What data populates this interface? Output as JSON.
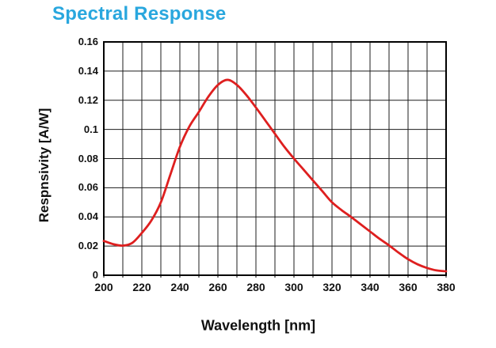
{
  "header": {
    "title": "Spectral Response",
    "title_color": "#29a7de"
  },
  "chart_data": {
    "type": "line",
    "title": "Spectral Response",
    "xlabel": "Wavelength [nm]",
    "ylabel": "Respnsivity [A/W]",
    "xlim": [
      200,
      380
    ],
    "ylim": [
      0,
      0.16
    ],
    "x_grid_step": 10,
    "y_grid_step": 0.02,
    "x_tick_labels": [
      "200",
      "220",
      "240",
      "260",
      "280",
      "300",
      "320",
      "340",
      "360",
      "380"
    ],
    "y_tick_labels": [
      "0.16",
      "0.14",
      "0.12",
      "0.1",
      "0.08",
      "0.06",
      "0.04",
      "0.02",
      "0"
    ],
    "grid": true,
    "legend": false,
    "line_color": "#de1f1f",
    "grid_color": "#1c1c1c",
    "axis_color": "#000000",
    "series": [
      {
        "name": "spectral response",
        "points": [
          [
            200,
            0.0235
          ],
          [
            205,
            0.0213
          ],
          [
            210,
            0.0203
          ],
          [
            215,
            0.0222
          ],
          [
            220,
            0.029
          ],
          [
            225,
            0.0375
          ],
          [
            230,
            0.05
          ],
          [
            235,
            0.069
          ],
          [
            240,
            0.088
          ],
          [
            245,
            0.102
          ],
          [
            250,
            0.112
          ],
          [
            255,
            0.1225
          ],
          [
            260,
            0.1305
          ],
          [
            265,
            0.134
          ],
          [
            270,
            0.1305
          ],
          [
            275,
            0.1235
          ],
          [
            280,
            0.115
          ],
          [
            285,
            0.106
          ],
          [
            290,
            0.097
          ],
          [
            295,
            0.088
          ],
          [
            300,
            0.08
          ],
          [
            305,
            0.0725
          ],
          [
            310,
            0.065
          ],
          [
            315,
            0.0575
          ],
          [
            320,
            0.05
          ],
          [
            325,
            0.0447
          ],
          [
            330,
            0.04
          ],
          [
            335,
            0.035
          ],
          [
            340,
            0.03
          ],
          [
            345,
            0.025
          ],
          [
            350,
            0.0205
          ],
          [
            355,
            0.0155
          ],
          [
            360,
            0.011
          ],
          [
            365,
            0.0075
          ],
          [
            370,
            0.005
          ],
          [
            375,
            0.0033
          ],
          [
            380,
            0.0027
          ]
        ]
      }
    ]
  }
}
